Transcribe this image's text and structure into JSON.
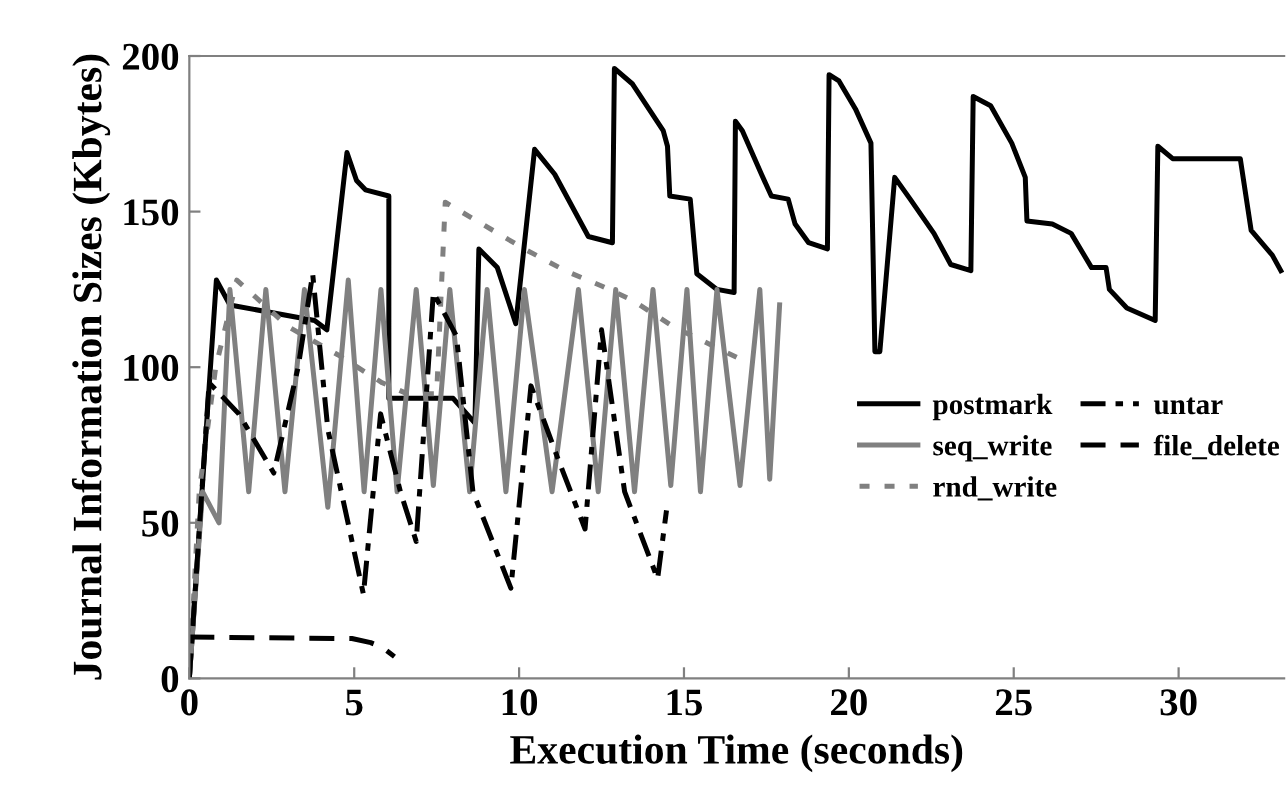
{
  "chart_data": {
    "type": "line",
    "xlabel": "Execution Time (seconds)",
    "ylabel": "Journal Information Sizes (Kbytes)",
    "xlim": [
      0,
      33.2
    ],
    "ylim": [
      0,
      200
    ],
    "xticks": [
      0,
      5,
      10,
      15,
      20,
      25,
      30
    ],
    "yticks": [
      0,
      50,
      100,
      150,
      200
    ],
    "grid": false,
    "legend": "right",
    "marker": "none",
    "series": [
      {
        "name": "postmark",
        "color": "#000000",
        "line_style": "solid",
        "x": [
          0,
          0.82,
          1.23,
          3.8,
          4.17,
          4.78,
          5.07,
          5.34,
          6.05,
          6.05,
          8.0,
          8.66,
          8.78,
          9.34,
          9.9,
          10.47,
          11.08,
          12.1,
          12.83,
          12.89,
          13.44,
          14.37,
          14.5,
          14.57,
          15.19,
          15.39,
          16.0,
          16.52,
          16.56,
          16.77,
          17.35,
          17.65,
          18.16,
          18.37,
          18.78,
          19.35,
          19.4,
          19.7,
          20.2,
          20.67,
          20.79,
          20.94,
          21.39,
          21.86,
          22.58,
          23.09,
          23.7,
          23.77,
          24.3,
          24.94,
          25.35,
          25.4,
          26.17,
          26.74,
          27.36,
          27.8,
          27.9,
          28.43,
          29.29,
          29.37,
          29.82,
          31.87,
          32.2,
          32.84,
          33.1
        ],
        "values": [
          0,
          128,
          120,
          115,
          112,
          169,
          160,
          157,
          155,
          90,
          90,
          82,
          138,
          132,
          114,
          170,
          162,
          142,
          140,
          196,
          191,
          176,
          171,
          155,
          154,
          130,
          125,
          124,
          179,
          176,
          162,
          155,
          154,
          146,
          140,
          138,
          194,
          192,
          183,
          172,
          105,
          105,
          161,
          154,
          143,
          133,
          131,
          187,
          184,
          172,
          161,
          147,
          146,
          143,
          132,
          132,
          125,
          119,
          115,
          171,
          167,
          167,
          144,
          136,
          131
        ]
      },
      {
        "name": "seq_write",
        "color": "#808080",
        "line_style": "solid",
        "x": [
          0,
          0.4,
          0.9,
          1.23,
          1.8,
          2.32,
          2.9,
          3.49,
          4.2,
          4.82,
          5.3,
          5.81,
          6.3,
          6.88,
          7.4,
          7.9,
          8.5,
          9.03,
          9.6,
          10.16,
          11.0,
          11.8,
          12.4,
          12.93,
          13.5,
          14.06,
          14.6,
          15.09,
          15.5,
          16.0,
          16.7,
          17.3,
          17.6,
          17.9
        ],
        "values": [
          0,
          60,
          50,
          125,
          60,
          125,
          60,
          125,
          55,
          128,
          60,
          125,
          60,
          125,
          62,
          125,
          60,
          125,
          60,
          125,
          60,
          125,
          60,
          125,
          60,
          125,
          62,
          125,
          60,
          125,
          62,
          125,
          64,
          120
        ]
      },
      {
        "name": "rnd_write",
        "color": "#808080",
        "line_style": "dotted",
        "x": [
          0,
          0.3,
          0.8,
          1.44,
          3.0,
          4.5,
          5.85,
          6.6,
          7.5,
          7.76,
          10.16,
          11.4,
          12.52,
          13.44,
          14.68,
          16.63
        ],
        "values": [
          0,
          60,
          100,
          128,
          113,
          104,
          95,
          91.5,
          91.5,
          153,
          138,
          131,
          126,
          121.5,
          113,
          103
        ]
      },
      {
        "name": "untar",
        "color": "#000000",
        "line_style": "dashdot",
        "x": [
          0,
          0.6,
          1.5,
          2.56,
          3.3,
          3.74,
          4.2,
          5.28,
          5.8,
          6.4,
          6.88,
          7.4,
          8.1,
          8.6,
          9.75,
          10.36,
          11.2,
          12.0,
          12.5,
          13.2,
          14.2,
          14.47
        ],
        "values": [
          0,
          95,
          85,
          66,
          100,
          130,
          80,
          27,
          85,
          60,
          44,
          124,
          110,
          60,
          29,
          94,
          70,
          48,
          112,
          60,
          32,
          54
        ]
      },
      {
        "name": "file_delete",
        "color": "#000000",
        "line_style": "dashed",
        "x": [
          0,
          4.93,
          5.5,
          5.85,
          6.22
        ],
        "values": [
          13.3,
          12.8,
          11.5,
          10,
          7
        ]
      }
    ]
  }
}
